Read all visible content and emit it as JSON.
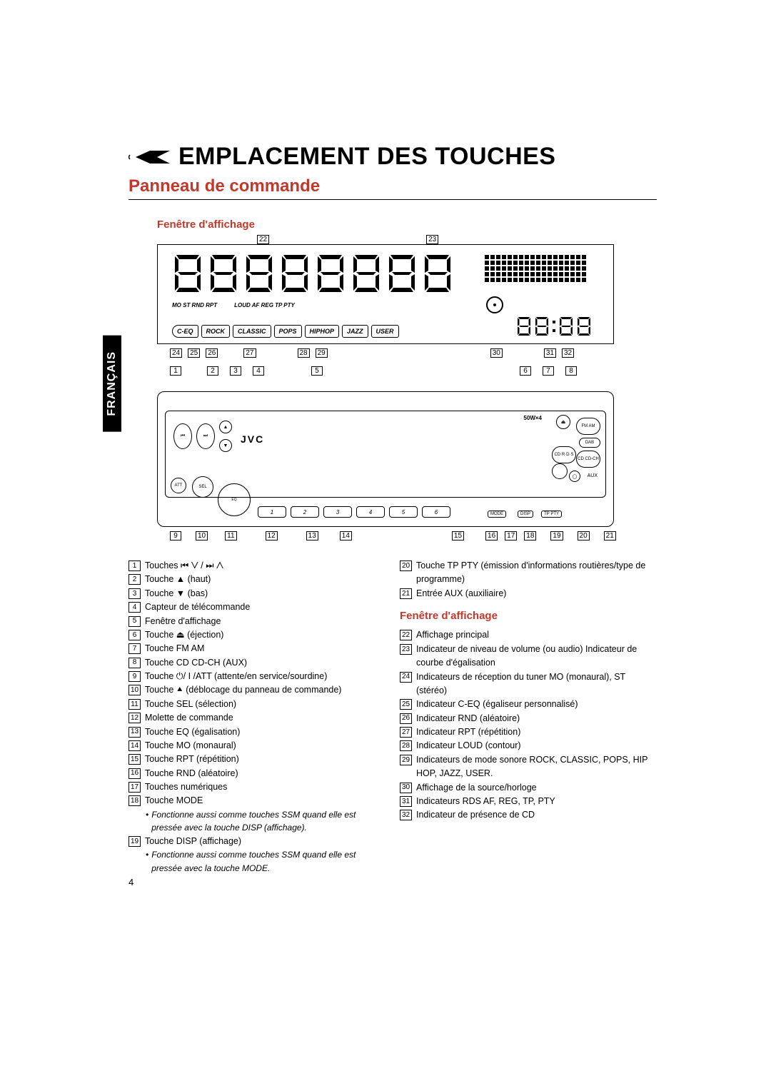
{
  "page_number": "4",
  "language_tab": "FRANÇAIS",
  "title": "EMPLACEMENT DES TOUCHES",
  "subtitle": "Panneau de commande",
  "diagram_caption": "Fenêtre d'affichage",
  "brand": "JVC",
  "wattage": "50W×4",
  "eq_modes": [
    "C-EQ",
    "ROCK",
    "CLASSIC",
    "POPS",
    "HIPHOP",
    "JAZZ",
    "USER"
  ],
  "indicator_labels_left": "MO ST RND RPT",
  "indicator_labels_right": "LOUD AF REG TP PTY",
  "callouts_display_top": [
    "22",
    "23"
  ],
  "callouts_display_bottom": [
    "24",
    "25",
    "26",
    "27",
    "28",
    "29",
    "30",
    "31",
    "32"
  ],
  "callouts_panel_top": [
    "1",
    "2",
    "3",
    "4",
    "5",
    "6",
    "7",
    "8"
  ],
  "callouts_panel_bottom": [
    "9",
    "10",
    "11",
    "12",
    "13",
    "14",
    "15",
    "16",
    "17",
    "18",
    "19",
    "20",
    "21"
  ],
  "panel_right_labels": {
    "fm_am": "FM\nAM",
    "dab": "DAB",
    "cd": "CD\nR·D·S",
    "cdch": "CD\nCD-CH",
    "aux": "AUX"
  },
  "panel_small_btns": {
    "mode": "MODE",
    "disp": "DISP",
    "tp": "TP\nPTY",
    "att": "ATT",
    "sel": "SEL",
    "eq": "EQ"
  },
  "preset_label_prefix": "",
  "section2_head": "Fenêtre d'affichage",
  "legend_left": [
    {
      "n": "1",
      "t": "Touches ⏮ ⋁ / ⏭ ⋀"
    },
    {
      "n": "2",
      "t": "Touche ▲ (haut)"
    },
    {
      "n": "3",
      "t": "Touche ▼ (bas)"
    },
    {
      "n": "4",
      "t": "Capteur de télécommande"
    },
    {
      "n": "5",
      "t": "Fenêtre d'affichage"
    },
    {
      "n": "6",
      "t": "Touche ⏏ (éjection)"
    },
    {
      "n": "7",
      "t": "Touche FM AM"
    },
    {
      "n": "8",
      "t": "Touche CD CD-CH (AUX)"
    },
    {
      "n": "9",
      "t": "Touche ⏻/ I /ATT (attente/en service/sourdine)"
    },
    {
      "n": "10",
      "t": "Touche ⯅ (déblocage du panneau de commande)"
    },
    {
      "n": "11",
      "t": "Touche SEL (sélection)"
    },
    {
      "n": "12",
      "t": "Molette de commande"
    },
    {
      "n": "13",
      "t": "Touche EQ (égalisation)"
    },
    {
      "n": "14",
      "t": "Touche MO (monaural)"
    },
    {
      "n": "15",
      "t": "Touche RPT (répétition)"
    },
    {
      "n": "16",
      "t": "Touche RND (aléatoire)"
    },
    {
      "n": "17",
      "t": "Touches numériques"
    },
    {
      "n": "18",
      "t": "Touche MODE"
    },
    {
      "n": "19",
      "t": "Touche DISP (affichage)"
    }
  ],
  "note_18": "Fonctionne aussi comme touches SSM quand elle est pressée avec la touche DISP (affichage).",
  "note_19": "Fonctionne aussi comme touches SSM quand elle est pressée avec la touche MODE.",
  "legend_right_top": [
    {
      "n": "20",
      "t": "Touche TP PTY (émission d'informations routières/type de programme)"
    },
    {
      "n": "21",
      "t": "Entrée AUX (auxiliaire)"
    }
  ],
  "legend_right_bottom": [
    {
      "n": "22",
      "t": "Affichage principal"
    },
    {
      "n": "23",
      "t": "Indicateur de niveau de volume (ou audio) Indicateur de courbe d'égalisation"
    },
    {
      "n": "24",
      "t": "Indicateurs de réception du tuner MO (monaural), ST (stéréo)"
    },
    {
      "n": "25",
      "t": "Indicateur C-EQ (égaliseur personnalisé)"
    },
    {
      "n": "26",
      "t": "Indicateur RND (aléatoire)"
    },
    {
      "n": "27",
      "t": "Indicateur RPT (répétition)"
    },
    {
      "n": "28",
      "t": "Indicateur LOUD (contour)"
    },
    {
      "n": "29",
      "t": "Indicateurs de mode sonore ROCK, CLASSIC, POPS, HIP HOP, JAZZ, USER."
    },
    {
      "n": "30",
      "t": "Affichage de la source/horloge"
    },
    {
      "n": "31",
      "t": "Indicateurs RDS AF, REG, TP, PTY"
    },
    {
      "n": "32",
      "t": "Indicateur de présence de CD"
    }
  ],
  "colors": {
    "accent": "#c0392b",
    "text": "#000000",
    "bg": "#ffffff"
  }
}
